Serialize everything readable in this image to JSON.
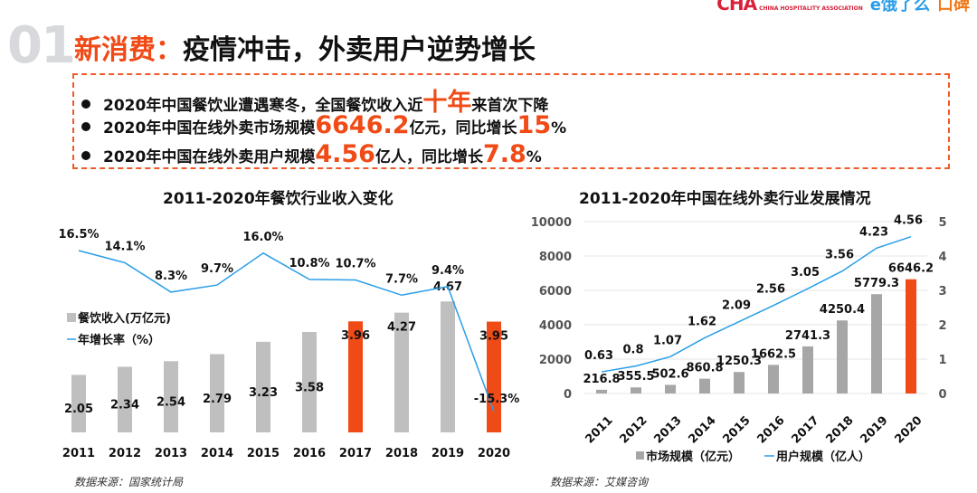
{
  "logos": {
    "cha": "CHA",
    "cha_sub": "CHINA HOSPITALITY ASSOCIATION",
    "eleme": "饿了么",
    "koubei": "口碑"
  },
  "section_number": "01",
  "title": {
    "prefix": "新消费：",
    "main": "疫情冲击，外卖用户逆势增长"
  },
  "bullets": [
    {
      "a": "2020年中国餐饮业遭遇寒冬，全国餐饮收入近",
      "big": "十年",
      "b": "来首次下降",
      "big2": "",
      "c": ""
    },
    {
      "a": "2020年中国在线外卖市场规模",
      "big": "6646.2",
      "b": "亿元，同比增长",
      "big2": "15",
      "c": "%"
    },
    {
      "a": "2020年中国在线外卖用户规模",
      "big": "4.56",
      "b": "亿人，同比增长",
      "big2": "7.8",
      "c": "%"
    }
  ],
  "colors": {
    "accent": "#f04a16",
    "bar_gray": "#bfbfbf",
    "bar_gray_dark": "#a6a6a6",
    "line": "#2a9ee8"
  },
  "chart_data": [
    {
      "type": "bar+line",
      "title": "2011-2020年餐饮行业收入变化",
      "categories": [
        "2011",
        "2012",
        "2013",
        "2014",
        "2015",
        "2016",
        "2017",
        "2018",
        "2019",
        "2020"
      ],
      "series": [
        {
          "name": "餐饮收入(万亿元)",
          "type": "bar",
          "values": [
            2.05,
            2.34,
            2.54,
            2.79,
            3.23,
            3.58,
            3.96,
            4.27,
            4.67,
            3.95
          ],
          "labels": [
            "2.05",
            "2.34",
            "2.54",
            "2.79",
            "3.23",
            "3.58",
            "3.96",
            "4.27",
            "4.67",
            "3.95"
          ],
          "highlight": [
            "2017",
            "2020"
          ]
        },
        {
          "name": "年增长率（%）",
          "type": "line",
          "values": [
            16.5,
            14.1,
            8.3,
            9.7,
            16.0,
            10.8,
            10.7,
            7.7,
            9.4,
            -15.3
          ],
          "labels": [
            "16.5%",
            "14.1%",
            "8.3%",
            "9.7%",
            "16.0%",
            "10.8%",
            "10.7%",
            "7.7%",
            "9.4%",
            "-15.3%"
          ]
        }
      ],
      "legend": "left",
      "source": "数据来源：国家统计局"
    },
    {
      "type": "bar+line",
      "title": "2011-2020年中国在线外卖行业发展情况",
      "categories": [
        "2011",
        "2012",
        "2013",
        "2014",
        "2015",
        "2016",
        "2017",
        "2018",
        "2019",
        "2020"
      ],
      "y_left": {
        "range": [
          0,
          10000
        ],
        "ticks": [
          "0",
          "2000",
          "4000",
          "6000",
          "8000",
          "10000"
        ]
      },
      "y_right": {
        "range": [
          0,
          5
        ],
        "ticks": [
          "0",
          "1",
          "2",
          "3",
          "4",
          "5"
        ]
      },
      "grid": true,
      "series": [
        {
          "name": "市场规模（亿元）",
          "type": "bar",
          "values": [
            216.8,
            355.5,
            502.6,
            860.8,
            1250.3,
            1662.5,
            2741.3,
            4250.4,
            5779.3,
            6646.2
          ],
          "labels": [
            "216.8",
            "355.5",
            "502.6",
            "860.8",
            "1250.3",
            "1662.5",
            "2741.3",
            "4250.4",
            "5779.3",
            "6646.2"
          ],
          "highlight": [
            "2020"
          ]
        },
        {
          "name": "用户规模（亿人）",
          "type": "line",
          "axis": "right",
          "values": [
            0.63,
            0.8,
            1.07,
            1.62,
            2.09,
            2.56,
            3.05,
            3.56,
            4.23,
            4.56
          ],
          "labels": [
            "0.63",
            "0.8",
            "1.07",
            "1.62",
            "2.09",
            "2.56",
            "3.05",
            "3.56",
            "4.23",
            "4.56"
          ]
        }
      ],
      "legend": "bottom",
      "source": "数据来源：艾媒咨询"
    }
  ]
}
